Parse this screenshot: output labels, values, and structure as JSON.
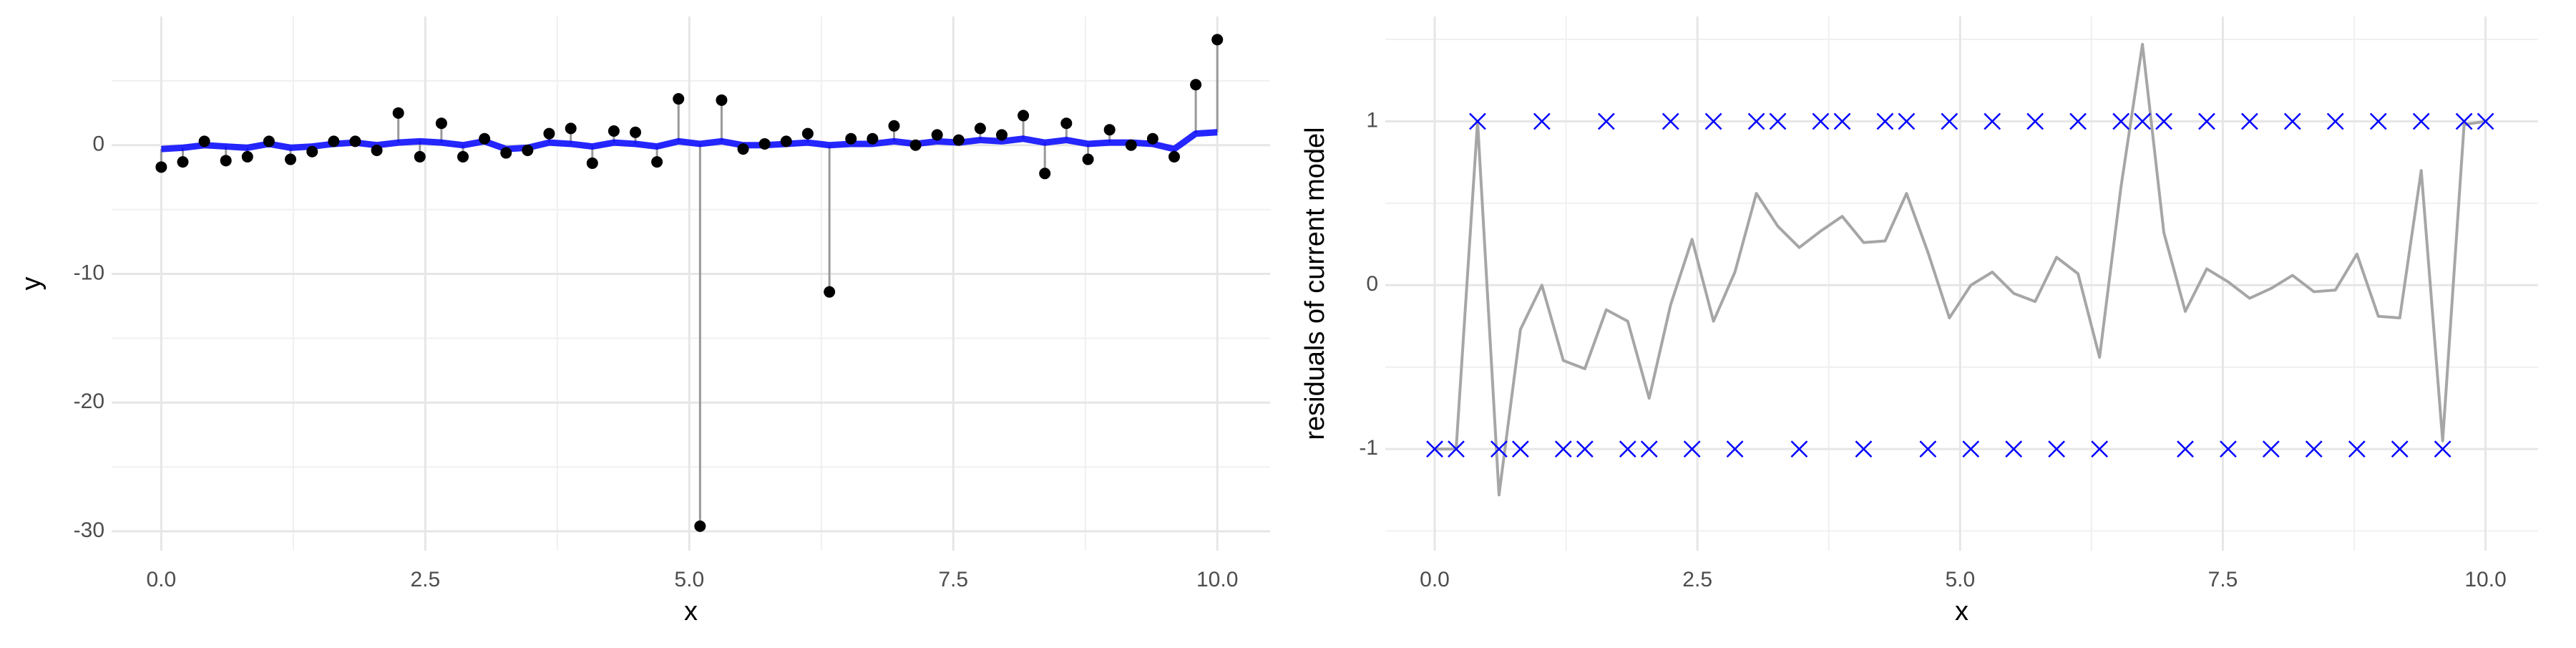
{
  "chart_data": [
    {
      "type": "scatter",
      "xlabel": "x",
      "ylabel": "y",
      "grid": true,
      "residual_segments": true,
      "xlim": [
        -0.47,
        10.5
      ],
      "ylim": [
        -31.5,
        10
      ],
      "xticks": [
        {
          "value": 0,
          "label": "0.0"
        },
        {
          "value": 2.5,
          "label": "2.5"
        },
        {
          "value": 5,
          "label": "5.0"
        },
        {
          "value": 7.5,
          "label": "7.5"
        },
        {
          "value": 10,
          "label": "10.0"
        }
      ],
      "yticks": [
        -30,
        -20,
        -10,
        0
      ],
      "x": [
        0,
        0.204,
        0.408,
        0.612,
        0.816,
        1.02,
        1.224,
        1.429,
        1.633,
        1.837,
        2.041,
        2.245,
        2.449,
        2.653,
        2.857,
        3.061,
        3.265,
        3.469,
        3.673,
        3.878,
        4.082,
        4.286,
        4.49,
        4.694,
        4.898,
        5.102,
        5.306,
        5.51,
        5.714,
        5.918,
        6.122,
        6.327,
        6.531,
        6.735,
        6.939,
        7.143,
        7.347,
        7.551,
        7.755,
        7.959,
        8.163,
        8.367,
        8.571,
        8.776,
        8.98,
        9.184,
        9.388,
        9.592,
        9.796,
        10
      ],
      "series": [
        {
          "color": "#000000",
          "marker": "dot",
          "values": [
            -1.7,
            -1.3,
            0.3,
            -1.2,
            -0.9,
            0.3,
            -1.1,
            -0.5,
            0.3,
            0.3,
            -0.4,
            2.5,
            -0.9,
            1.7,
            -0.9,
            0.5,
            -0.6,
            -0.4,
            0.9,
            1.3,
            -1.4,
            1.1,
            1.0,
            -1.3,
            3.6,
            -29.6,
            3.5,
            -0.3,
            0.1,
            0.3,
            0.9,
            -11.4,
            0.5,
            0.5,
            1.5,
            0.0,
            0.8,
            0.4,
            1.3,
            0.8,
            2.3,
            -2.2,
            1.7,
            -1.1,
            1.2,
            0.0,
            0.5,
            -0.9,
            4.7,
            8.2
          ]
        },
        {
          "color": "#0000ff",
          "marker": "band",
          "values": [
            -0.3,
            -0.2,
            0,
            -0.1,
            -0.2,
            0.1,
            -0.2,
            -0.1,
            0.1,
            0.2,
            0,
            0.2,
            0.3,
            0.2,
            0,
            0.3,
            -0.3,
            -0.2,
            0.2,
            0.1,
            -0.1,
            0.2,
            0.1,
            -0.1,
            0.3,
            0.1,
            0.3,
            0,
            0,
            0.1,
            0.2,
            0,
            0.1,
            0.1,
            0.3,
            0.1,
            0.3,
            0.2,
            0.4,
            0.3,
            0.5,
            0.2,
            0.4,
            0.1,
            0.2,
            0.2,
            0.1,
            -0.3,
            0.9,
            1.0
          ]
        }
      ]
    },
    {
      "type": "line",
      "xlabel": "x",
      "ylabel": "residuals of current model",
      "grid": true,
      "xlim": [
        -0.47,
        10.5
      ],
      "ylim": [
        -1.62,
        1.64
      ],
      "xticks": [
        {
          "value": 0,
          "label": "0.0"
        },
        {
          "value": 2.5,
          "label": "2.5"
        },
        {
          "value": 5,
          "label": "5.0"
        },
        {
          "value": 7.5,
          "label": "7.5"
        },
        {
          "value": 10,
          "label": "10.0"
        }
      ],
      "yticks": [
        -1,
        0,
        1
      ],
      "x": [
        0,
        0.204,
        0.408,
        0.612,
        0.816,
        1.02,
        1.224,
        1.429,
        1.633,
        1.837,
        2.041,
        2.245,
        2.449,
        2.653,
        2.857,
        3.061,
        3.265,
        3.469,
        3.673,
        3.878,
        4.082,
        4.286,
        4.49,
        4.694,
        4.898,
        5.102,
        5.306,
        5.51,
        5.714,
        5.918,
        6.122,
        6.327,
        6.531,
        6.735,
        6.939,
        7.143,
        7.347,
        7.551,
        7.755,
        7.959,
        8.163,
        8.367,
        8.571,
        8.776,
        8.98,
        9.184,
        9.388,
        9.592,
        9.796,
        10
      ],
      "series": [
        {
          "color": "#a6a6a6",
          "marker": "line",
          "values": [
            -1.0,
            -1.0,
            1.0,
            -1.28,
            -0.27,
            0.0,
            -0.46,
            -0.51,
            -0.15,
            -0.22,
            -0.69,
            -0.12,
            0.28,
            -0.22,
            0.08,
            0.56,
            0.36,
            0.23,
            0.33,
            0.42,
            0.26,
            0.27,
            0.56,
            0.2,
            -0.2,
            0.0,
            0.08,
            -0.05,
            -0.1,
            0.17,
            0.07,
            -0.44,
            0.6,
            1.47,
            0.32,
            -0.16,
            0.1,
            0.02,
            -0.08,
            -0.02,
            0.06,
            -0.04,
            -0.03,
            0.19,
            -0.19,
            -0.2,
            0.7,
            -0.95,
            0.98,
            1.0
          ]
        },
        {
          "color": "#0000ff",
          "marker": "cross",
          "values": [
            -1,
            -1,
            1,
            -1,
            -1,
            1,
            -1,
            -1,
            1,
            -1,
            -1,
            1,
            -1,
            1,
            -1,
            1,
            1,
            -1,
            1,
            1,
            -1,
            1,
            1,
            -1,
            1,
            -1,
            1,
            -1,
            1,
            -1,
            1,
            -1,
            1,
            1,
            1,
            -1,
            1,
            -1,
            1,
            -1,
            1,
            -1,
            1,
            -1,
            1,
            -1,
            1,
            -1,
            1,
            1
          ]
        }
      ]
    }
  ]
}
